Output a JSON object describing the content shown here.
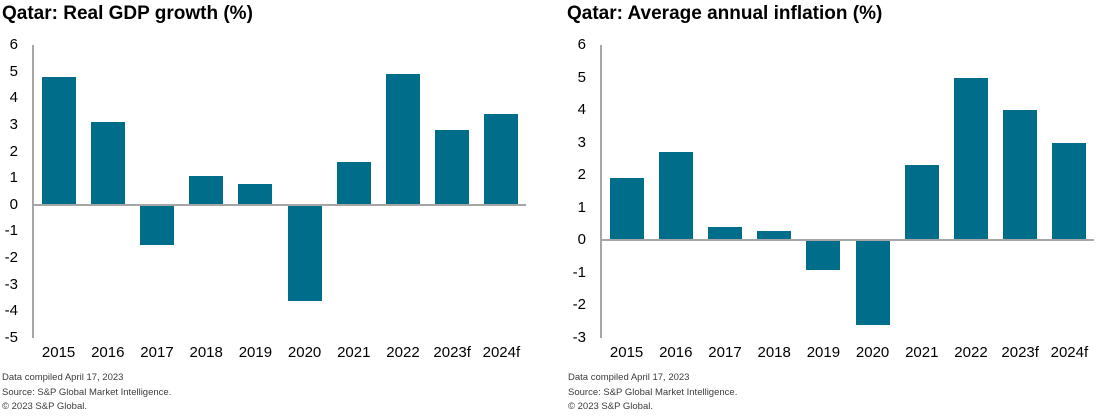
{
  "colors": {
    "bar": "#006d8a",
    "axis": "#a6a6a6",
    "title_text": "#000000",
    "footer_text": "#3c3c3c",
    "background": "#ffffff"
  },
  "chart_data": [
    {
      "type": "bar",
      "title": "Qatar: Real GDP growth (%)",
      "categories": [
        "2015",
        "2016",
        "2017",
        "2018",
        "2019",
        "2020",
        "2021",
        "2022",
        "2023f",
        "2024f"
      ],
      "values": [
        4.8,
        3.1,
        -1.5,
        1.1,
        0.8,
        -3.6,
        1.6,
        4.9,
        2.8,
        3.4
      ],
      "xlabel": "",
      "ylabel": "",
      "ylim": [
        -5,
        6
      ],
      "ytick_step": 1,
      "yticks": [
        6,
        5,
        4,
        3,
        2,
        1,
        0,
        -1,
        -2,
        -3,
        -4,
        -5
      ],
      "grid": false,
      "legend": "none",
      "footer": [
        "Data compiled April 17, 2023",
        "Source: S&P Global Market Intelligence.",
        "© 2023 S&P Global."
      ]
    },
    {
      "type": "bar",
      "title": "Qatar: Average annual inflation (%)",
      "categories": [
        "2015",
        "2016",
        "2017",
        "2018",
        "2019",
        "2020",
        "2021",
        "2022",
        "2023f",
        "2024f"
      ],
      "values": [
        1.9,
        2.7,
        0.4,
        0.3,
        -0.9,
        -2.6,
        2.3,
        5.0,
        4.0,
        3.0
      ],
      "xlabel": "",
      "ylabel": "",
      "ylim": [
        -3,
        6
      ],
      "ytick_step": 1,
      "yticks": [
        6,
        5,
        4,
        3,
        2,
        1,
        0,
        -1,
        -2,
        -3
      ],
      "grid": false,
      "legend": "none",
      "footer": [
        "Data compiled April 17, 2023",
        "Source: S&P Global Market Intelligence.",
        "© 2023 S&P Global."
      ]
    }
  ]
}
